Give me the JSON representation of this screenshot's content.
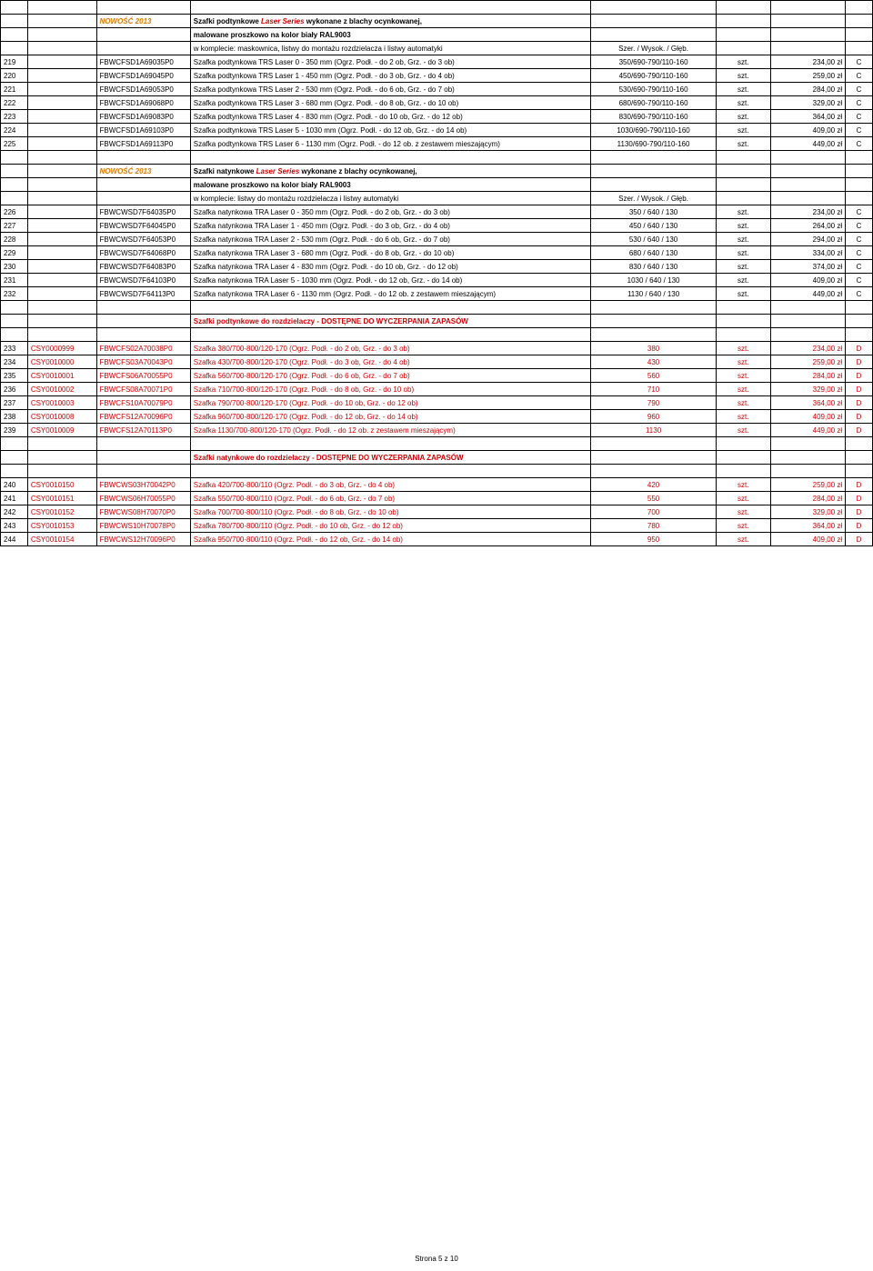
{
  "footer": "Strona 5 z 10",
  "section1": {
    "nowosc": "NOWOŚĆ 2013",
    "title_part1": "Szafki podtynkowe ",
    "title_part2": "Laser Series ",
    "title_part3": "wykonane z blachy ocynkowanej,",
    "line2": "malowane proszkowo na kolor biały RAL9003",
    "line3": "w komplecie: maskownica, listwy do montażu rozdzielacza i listwy automatyki",
    "dimhdr": "Szer. / Wysok. / Głęb.",
    "rows": [
      {
        "n": "219",
        "code": "FBWCFSD1A69035P0",
        "desc": "Szafka podtynkowa TRS Laser 0 - 350 mm (Ogrz. Podł. - do 2 ob, Grz. - do 3 ob)",
        "dim": "350/690-790/110-160",
        "unit": "szt.",
        "price": "234,00 zł",
        "g": "C"
      },
      {
        "n": "220",
        "code": "FBWCFSD1A69045P0",
        "desc": "Szafka podtynkowa TRS Laser 1 - 450 mm (Ogrz. Podł. - do 3 ob, Grz. - do 4 ob)",
        "dim": "450/690-790/110-160",
        "unit": "szt.",
        "price": "259,00 zł",
        "g": "C"
      },
      {
        "n": "221",
        "code": "FBWCFSD1A69053P0",
        "desc": "Szafka podtynkowa TRS Laser 2 - 530 mm (Ogrz. Podł. - do 6 ob, Grz. - do 7 ob)",
        "dim": "530/690-790/110-160",
        "unit": "szt.",
        "price": "284,00 zł",
        "g": "C"
      },
      {
        "n": "222",
        "code": "FBWCFSD1A69068P0",
        "desc": "Szafka podtynkowa TRS Laser 3 - 680 mm (Ogrz. Podł. - do 8 ob, Grz. - do 10 ob)",
        "dim": "680/690-790/110-160",
        "unit": "szt.",
        "price": "329,00 zł",
        "g": "C"
      },
      {
        "n": "223",
        "code": "FBWCFSD1A69083P0",
        "desc": "Szafka podtynkowa TRS Laser 4 - 830 mm (Ogrz. Podł. - do 10 ob, Grz. - do 12 ob)",
        "dim": "830/690-790/110-160",
        "unit": "szt.",
        "price": "364,00 zł",
        "g": "C"
      },
      {
        "n": "224",
        "code": "FBWCFSD1A69103P0",
        "desc": "Szafka podtynkowa TRS Laser 5 - 1030 mm (Ogrz. Podł. - do 12 ob, Grz. - do 14 ob)",
        "dim": "1030/690-790/110-160",
        "unit": "szt.",
        "price": "409,00 zł",
        "g": "C"
      },
      {
        "n": "225",
        "code": "FBWCFSD1A69113P0",
        "desc": "Szafka podtynkowa TRS Laser 6 - 1130 mm (Ogrz. Podł. - do 12 ob. z zestawem mieszającym)",
        "dim": "1130/690-790/110-160",
        "unit": "szt.",
        "price": "449,00 zł",
        "g": "C"
      }
    ]
  },
  "section2": {
    "nowosc": "NOWOŚĆ 2013",
    "title_part1": "Szafki natynkowe ",
    "title_part2": "Laser Series ",
    "title_part3": "wykonane z blachy ocynkowanej,",
    "line2": "malowane proszkowo na kolor biały RAL9003",
    "line3": "w komplecie: listwy do montażu rozdzielacza i listwy automatyki",
    "dimhdr": "Szer. / Wysok. / Głęb.",
    "rows": [
      {
        "n": "226",
        "code": "FBWCWSD7F64035P0",
        "desc": "Szafka natynkowa TRA Laser 0 - 350 mm (Ogrz. Podł. - do 2 ob, Grz. - do 3 ob)",
        "dim": "350 / 640 / 130",
        "unit": "szt.",
        "price": "234,00 zł",
        "g": "C"
      },
      {
        "n": "227",
        "code": "FBWCWSD7F64045P0",
        "desc": "Szafka natynkowa TRA Laser 1 - 450 mm (Ogrz. Podł. - do 3 ob, Grz. - do 4 ob)",
        "dim": "450 / 640 / 130",
        "unit": "szt.",
        "price": "264,00 zł",
        "g": "C"
      },
      {
        "n": "228",
        "code": "FBWCWSD7F64053P0",
        "desc": "Szafka natynkowa TRA Laser 2 - 530 mm (Ogrz. Podł. - do 6 ob, Grz. - do 7 ob)",
        "dim": "530 / 640 / 130",
        "unit": "szt.",
        "price": "294,00 zł",
        "g": "C"
      },
      {
        "n": "229",
        "code": "FBWCWSD7F64068P0",
        "desc": "Szafka natynkowa TRA Laser 3 - 680 mm (Ogrz. Podł. - do 8 ob, Grz. - do 10 ob)",
        "dim": "680 / 640 / 130",
        "unit": "szt.",
        "price": "334,00 zł",
        "g": "C"
      },
      {
        "n": "230",
        "code": "FBWCWSD7F64083P0",
        "desc": "Szafka natynkowa TRA Laser 4 - 830 mm (Ogrz. Podł. - do 10 ob, Grz. - do 12 ob)",
        "dim": "830 / 640 / 130",
        "unit": "szt.",
        "price": "374,00 zł",
        "g": "C"
      },
      {
        "n": "231",
        "code": "FBWCWSD7F64103P0",
        "desc": "Szafka natynkowa TRA Laser 5 - 1030 mm (Ogrz. Podł. - do 12 ob, Grz. - do 14 ob)",
        "dim": "1030 / 640 / 130",
        "unit": "szt.",
        "price": "409,00 zł",
        "g": "C"
      },
      {
        "n": "232",
        "code": "FBWCWSD7F64113P0",
        "desc": "Szafka natynkowa TRA Laser 6 - 1130 mm (Ogrz. Podł. - do 12 ob. z zestawem mieszającym)",
        "dim": "1130 / 640 / 130",
        "unit": "szt.",
        "price": "449,00 zł",
        "g": "C"
      }
    ]
  },
  "section3": {
    "title": "Szafki podtynkowe do rozdzielaczy - DOSTĘPNE DO WYCZERPANIA ZAPASÓW",
    "rows": [
      {
        "n": "233",
        "csy": "CSY0000999",
        "code": "FBWCFS02A70038P0",
        "desc": "Szafka  380/700-800/120-170 (Ogrz. Podł. - do 2 ob, Grz. - do 3 ob)",
        "dim": "380",
        "unit": "szt.",
        "price": "234,00 zł",
        "g": "D"
      },
      {
        "n": "234",
        "csy": "CSY0010000",
        "code": "FBWCFS03A70043P0",
        "desc": "Szafka  430/700-800/120-170 (Ogrz. Podł. - do 3 ob, Grz. - do 4 ob)",
        "dim": "430",
        "unit": "szt.",
        "price": "259,00 zł",
        "g": "D"
      },
      {
        "n": "235",
        "csy": "CSY0010001",
        "code": "FBWCFS06A70055P0",
        "desc": "Szafka  560/700-800/120-170 (Ogrz. Podł. - do 6 ob, Grz. - do 7 ob)",
        "dim": "560",
        "unit": "szt.",
        "price": "284,00 zł",
        "g": "D"
      },
      {
        "n": "236",
        "csy": "CSY0010002",
        "code": "FBWCFS08A70071P0",
        "desc": "Szafka  710/700-800/120-170 (Ogrz. Podł. - do 8 ob, Grz. - do 10 ob)",
        "dim": "710",
        "unit": "szt.",
        "price": "329,00 zł",
        "g": "D"
      },
      {
        "n": "237",
        "csy": "CSY0010003",
        "code": "FBWCFS10A70079P0",
        "desc": "Szafka  790/700-800/120-170 (Ogrz. Podł. - do 10 ob, Grz. - do 12 ob)",
        "dim": "790",
        "unit": "szt.",
        "price": "364,00 zł",
        "g": "D"
      },
      {
        "n": "238",
        "csy": "CSY0010008",
        "code": "FBWCFS12A70096P0",
        "desc": "Szafka  960/700-800/120-170 (Ogrz. Podł. - do 12 ob, Grz. - do 14 ob)",
        "dim": "960",
        "unit": "szt.",
        "price": "409,00 zł",
        "g": "D"
      },
      {
        "n": "239",
        "csy": "CSY0010009",
        "code": "FBWCFS12A70113P0",
        "desc": "Szafka  1130/700-800/120-170 (Ogrz. Podł. - do 12 ob. z zestawem mieszającym)",
        "dim": "1130",
        "unit": "szt.",
        "price": "449,00 zł",
        "g": "D"
      }
    ]
  },
  "section4": {
    "title": "Szafki natynkowe do rozdzielaczy - DOSTĘPNE DO WYCZERPANIA ZAPASÓW",
    "rows": [
      {
        "n": "240",
        "csy": "CSY0010150",
        "code": "FBWCWS03H70042P0",
        "desc": "Szafka  420/700-800/110 (Ogrz. Podł. - do 3 ob, Grz. - do 4 ob)",
        "dim": "420",
        "unit": "szt.",
        "price": "259,00 zł",
        "g": "D"
      },
      {
        "n": "241",
        "csy": "CSY0010151",
        "code": "FBWCWS06H70055P0",
        "desc": "Szafka  550/700-800/110 (Ogrz. Podł. - do 6 ob, Grz. - do 7 ob)",
        "dim": "550",
        "unit": "szt.",
        "price": "284,00 zł",
        "g": "D"
      },
      {
        "n": "242",
        "csy": "CSY0010152",
        "code": "FBWCWS08H70070P0",
        "desc": "Szafka  700/700-800/110 (Ogrz. Podł. - do 8 ob, Grz. - do 10 ob)",
        "dim": "700",
        "unit": "szt.",
        "price": "329,00 zł",
        "g": "D"
      },
      {
        "n": "243",
        "csy": "CSY0010153",
        "code": "FBWCWS10H70078P0",
        "desc": "Szafka  780/700-800/110 (Ogrz. Podł. - do 10 ob, Grz. - do 12 ob)",
        "dim": "780",
        "unit": "szt.",
        "price": "364,00 zł",
        "g": "D"
      },
      {
        "n": "244",
        "csy": "CSY0010154",
        "code": "FBWCWS12H70096P0",
        "desc": "Szafka  950/700-800/110 (Ogrz. Podł. - do 12 ob, Grz. - do 14 ob)",
        "dim": "950",
        "unit": "szt.",
        "price": "409,00 zł",
        "g": "D"
      }
    ]
  }
}
